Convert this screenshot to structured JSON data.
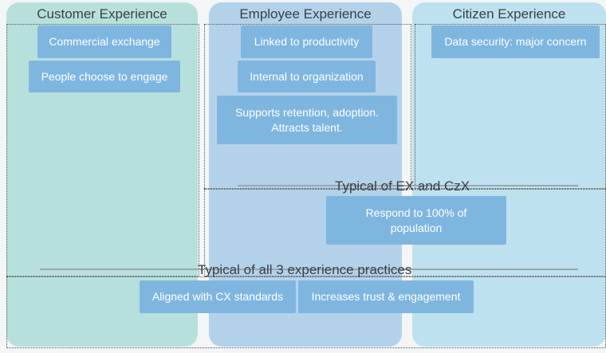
{
  "columns": {
    "customer": {
      "title": "Customer Experience",
      "items": [
        "Commercial exchange",
        "People choose to engage"
      ]
    },
    "employee": {
      "title": "Employee Experience",
      "items": [
        "Linked to productivity",
        "Internal to organization",
        "Supports retention, adoption. Attracts talent."
      ]
    },
    "citizen": {
      "title": "Citizen Experience",
      "items": [
        "Data security: major concern"
      ]
    }
  },
  "shared_ex_czx": {
    "heading": "Typical of EX and CzX",
    "items": [
      "Respond to 100% of population"
    ]
  },
  "shared_all": {
    "heading": "Typical of all 3 experience practices",
    "items": [
      "Aligned with CX standards",
      "Increases trust & engagement"
    ]
  },
  "colors": {
    "customer_bg": "#b7e0dd",
    "employee_bg": "#b3d2ea",
    "citizen_bg": "#bde1ee",
    "box_bg": "#7fb6e0"
  }
}
